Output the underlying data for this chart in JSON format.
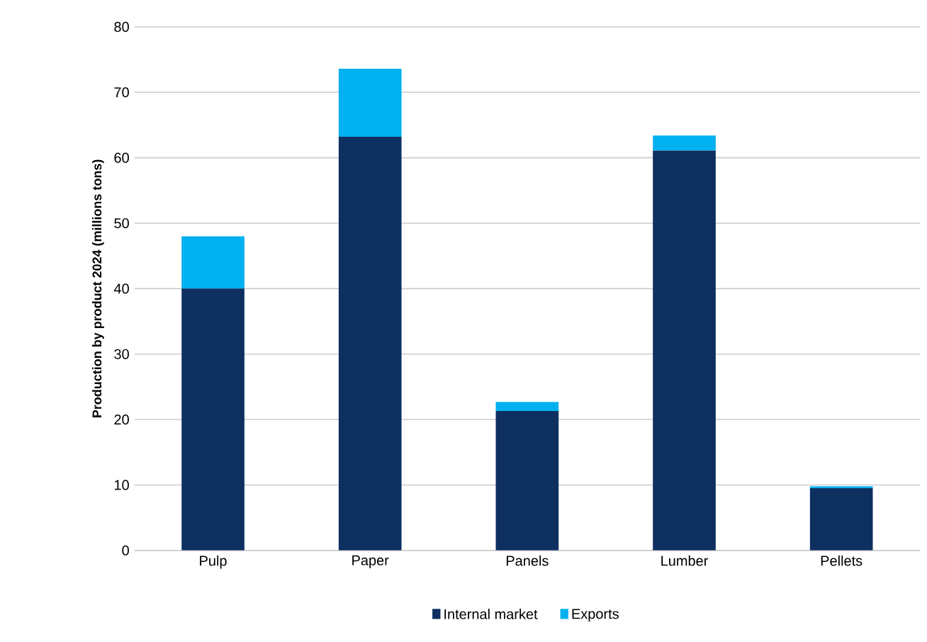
{
  "chart_data": {
    "type": "bar",
    "stacked": true,
    "ylabel": "Production by product 2024 (millions tons)",
    "categories": [
      "Pulp",
      "Paper",
      "Panels",
      "Lumber",
      "Pellets"
    ],
    "series": [
      {
        "name": "Internal market",
        "color": "#0d3060",
        "values": [
          40,
          63.2,
          21.3,
          61.1,
          9.5
        ]
      },
      {
        "name": "Exports",
        "color": "#00b0f0",
        "values": [
          8,
          10.4,
          1.4,
          2.3,
          0.3
        ]
      }
    ],
    "ylim": [
      0,
      80
    ],
    "yticks": [
      0,
      10,
      20,
      30,
      40,
      50,
      60,
      70,
      80
    ],
    "grid": "y",
    "legend": "bottom"
  }
}
